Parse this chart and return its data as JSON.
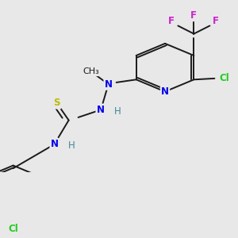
{
  "bg_color": "#e8e8e8",
  "bond_color": "#1a1a1a",
  "bond_width": 1.4,
  "dbo": 0.012,
  "atom_colors": {
    "N": "#0000ee",
    "Cl": "#22cc22",
    "F": "#cc22cc",
    "S": "#bbbb00",
    "C": "#1a1a1a",
    "H": "#448899"
  },
  "fs": 8.5
}
